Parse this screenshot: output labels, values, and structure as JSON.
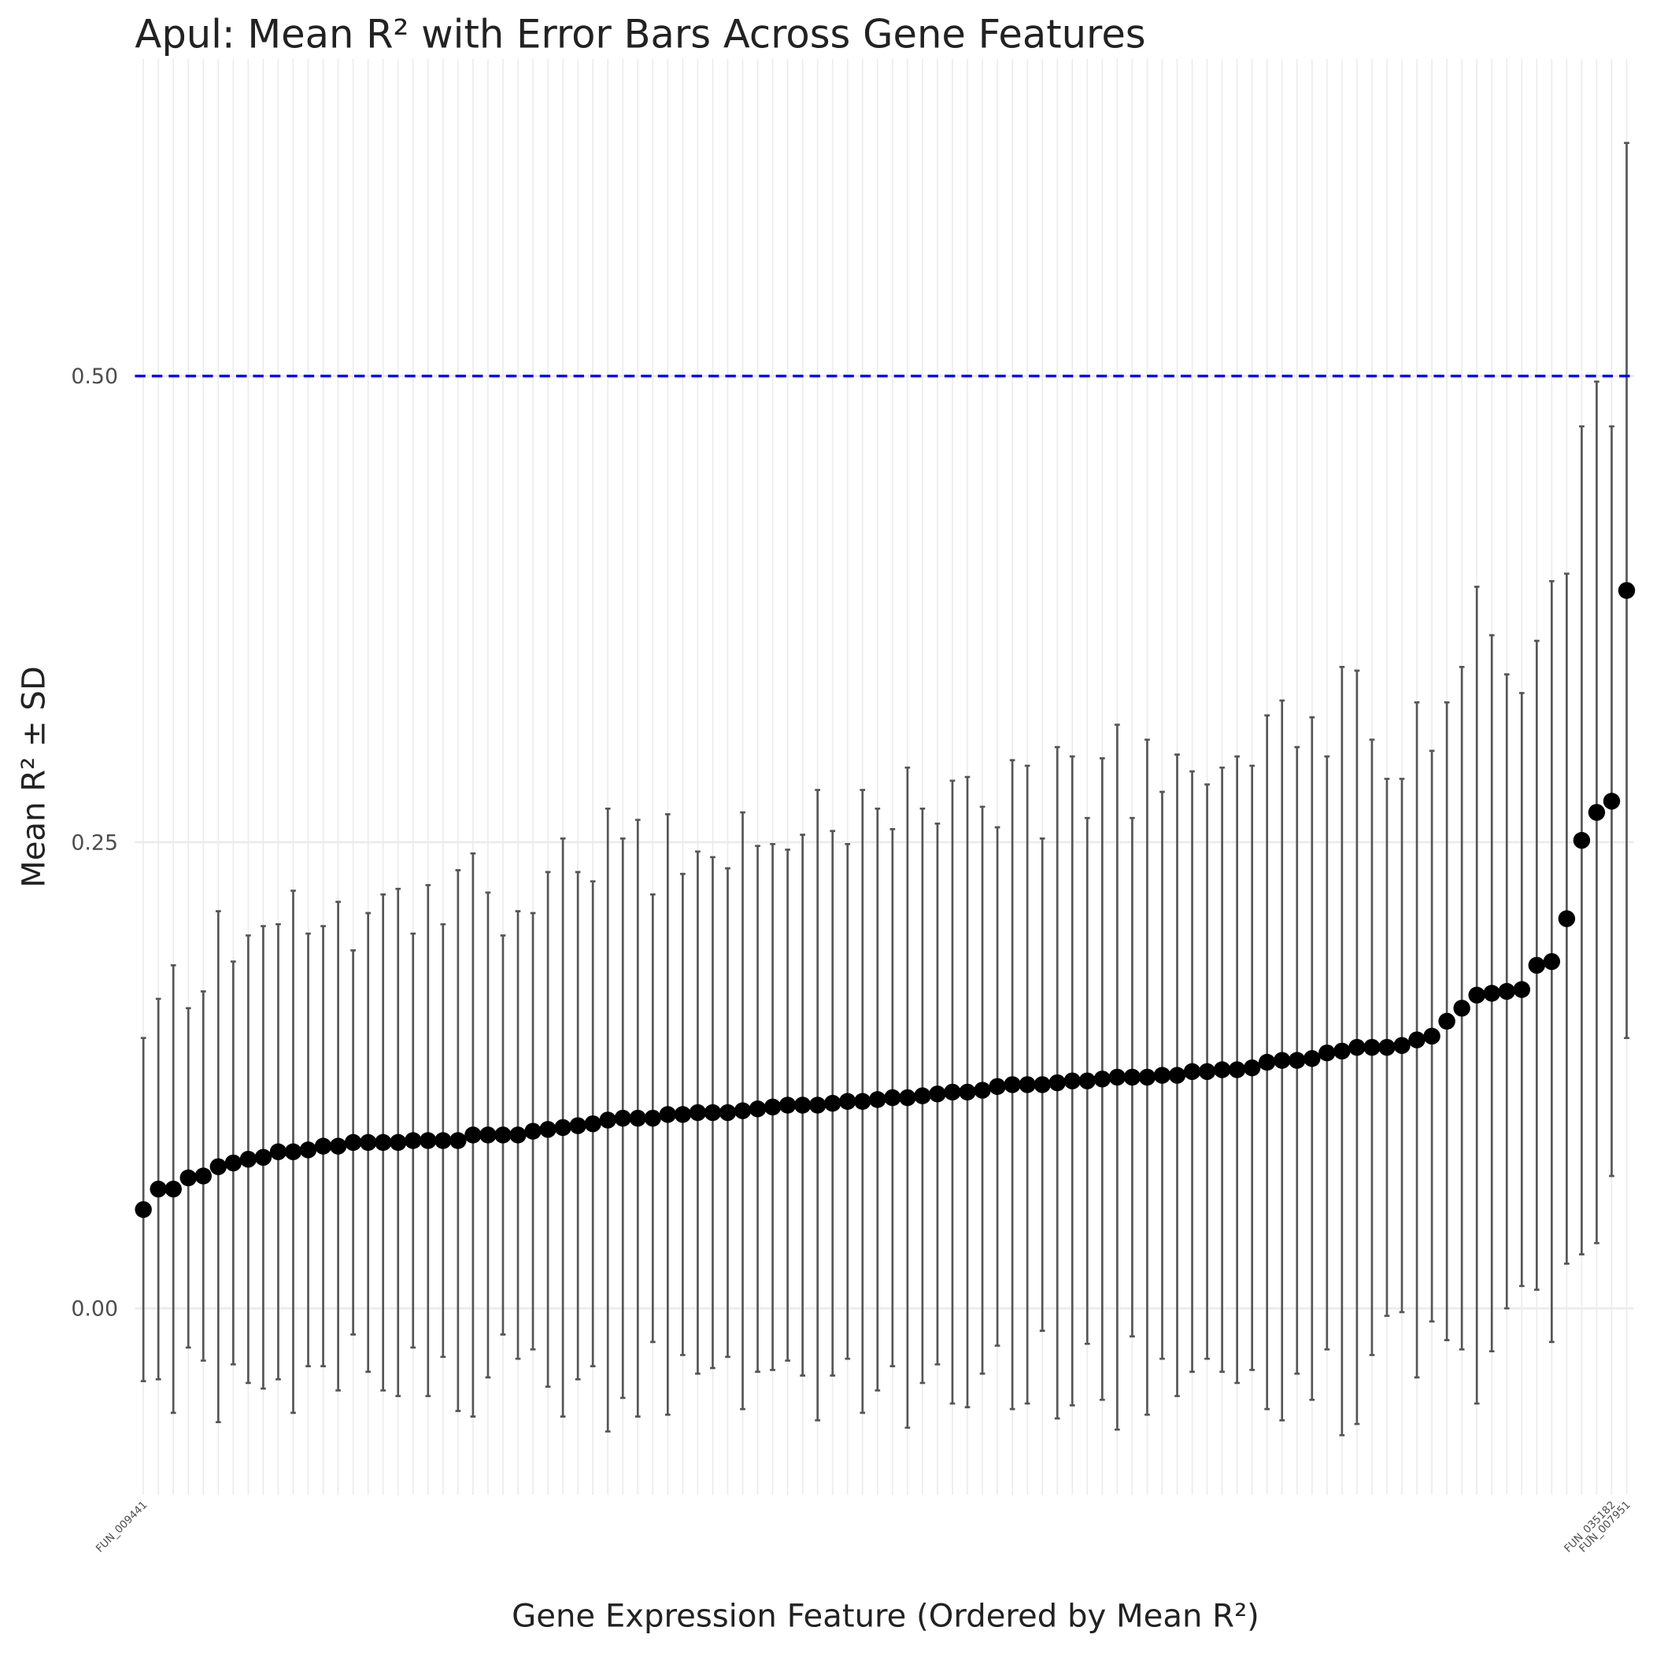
{
  "chart_data": {
    "type": "errorbar",
    "title": "Apul: Mean R² with Error Bars Across Gene Features",
    "xlabel": "Gene Expression Feature (Ordered by Mean R²)",
    "ylabel": "Mean R² ± SD",
    "categories": [
      "FUN_009441",
      null,
      null,
      null,
      null,
      null,
      null,
      null,
      null,
      null,
      null,
      null,
      null,
      null,
      null,
      null,
      null,
      null,
      null,
      null,
      null,
      null,
      null,
      null,
      null,
      null,
      null,
      null,
      null,
      null,
      null,
      null,
      null,
      null,
      null,
      null,
      null,
      null,
      null,
      null,
      null,
      null,
      null,
      null,
      null,
      null,
      null,
      null,
      null,
      null,
      null,
      null,
      null,
      null,
      null,
      null,
      null,
      null,
      null,
      null,
      null,
      null,
      null,
      null,
      null,
      null,
      null,
      null,
      null,
      null,
      null,
      null,
      null,
      null,
      null,
      null,
      null,
      null,
      null,
      null,
      null,
      null,
      null,
      null,
      null,
      null,
      null,
      null,
      null,
      null,
      null,
      null,
      null,
      null,
      null,
      null,
      null,
      null,
      "FUN_035182",
      "FUN_007951"
    ],
    "values": [
      0.053,
      0.064,
      0.064,
      0.07,
      0.071,
      0.076,
      0.078,
      0.08,
      0.081,
      0.084,
      0.084,
      0.085,
      0.087,
      0.087,
      0.089,
      0.089,
      0.089,
      0.089,
      0.09,
      0.09,
      0.09,
      0.09,
      0.093,
      0.093,
      0.093,
      0.093,
      0.095,
      0.096,
      0.097,
      0.098,
      0.099,
      0.101,
      0.102,
      0.102,
      0.102,
      0.104,
      0.104,
      0.105,
      0.105,
      0.105,
      0.106,
      0.107,
      0.108,
      0.109,
      0.109,
      0.109,
      0.11,
      0.111,
      0.111,
      0.112,
      0.113,
      0.113,
      0.114,
      0.115,
      0.116,
      0.116,
      0.117,
      0.119,
      0.12,
      0.12,
      0.12,
      0.121,
      0.122,
      0.122,
      0.123,
      0.124,
      0.124,
      0.124,
      0.125,
      0.125,
      0.127,
      0.127,
      0.128,
      0.128,
      0.129,
      0.132,
      0.133,
      0.133,
      0.134,
      0.137,
      0.138,
      0.14,
      0.14,
      0.14,
      0.141,
      0.144,
      0.146,
      0.154,
      0.161,
      0.168,
      0.169,
      0.17,
      0.171,
      0.184,
      0.186,
      0.209,
      0.251,
      0.266,
      0.272,
      0.385
    ],
    "errors": [
      0.092,
      0.102,
      0.12,
      0.091,
      0.099,
      0.137,
      0.108,
      0.12,
      0.124,
      0.122,
      0.14,
      0.116,
      0.118,
      0.131,
      0.103,
      0.123,
      0.133,
      0.136,
      0.111,
      0.137,
      0.116,
      0.145,
      0.151,
      0.13,
      0.107,
      0.12,
      0.117,
      0.138,
      0.155,
      0.136,
      0.13,
      0.167,
      0.15,
      0.16,
      0.12,
      0.161,
      0.129,
      0.14,
      0.137,
      0.131,
      0.16,
      0.141,
      0.141,
      0.137,
      0.145,
      0.169,
      0.146,
      0.138,
      0.167,
      0.156,
      0.144,
      0.177,
      0.154,
      0.145,
      0.167,
      0.169,
      0.152,
      0.139,
      0.174,
      0.171,
      0.132,
      0.18,
      0.174,
      0.141,
      0.172,
      0.189,
      0.139,
      0.181,
      0.152,
      0.172,
      0.161,
      0.154,
      0.162,
      0.168,
      0.162,
      0.186,
      0.193,
      0.168,
      0.183,
      0.159,
      0.206,
      0.202,
      0.165,
      0.144,
      0.143,
      0.181,
      0.153,
      0.171,
      0.183,
      0.219,
      0.192,
      0.17,
      0.159,
      0.174,
      0.204,
      0.185,
      0.222,
      0.231,
      0.201,
      0.24
    ],
    "color": "#000000",
    "error_color": "#555555",
    "ylim": [
      -0.1,
      0.67
    ],
    "yticks": [
      {
        "value": 0,
        "label": "0.00"
      },
      {
        "value": 0.25,
        "label": "0.25"
      },
      {
        "value": 0.5,
        "label": "0.50"
      }
    ],
    "grid": true,
    "reference_line": {
      "value": 0.5,
      "color": "#0000ff"
    }
  }
}
